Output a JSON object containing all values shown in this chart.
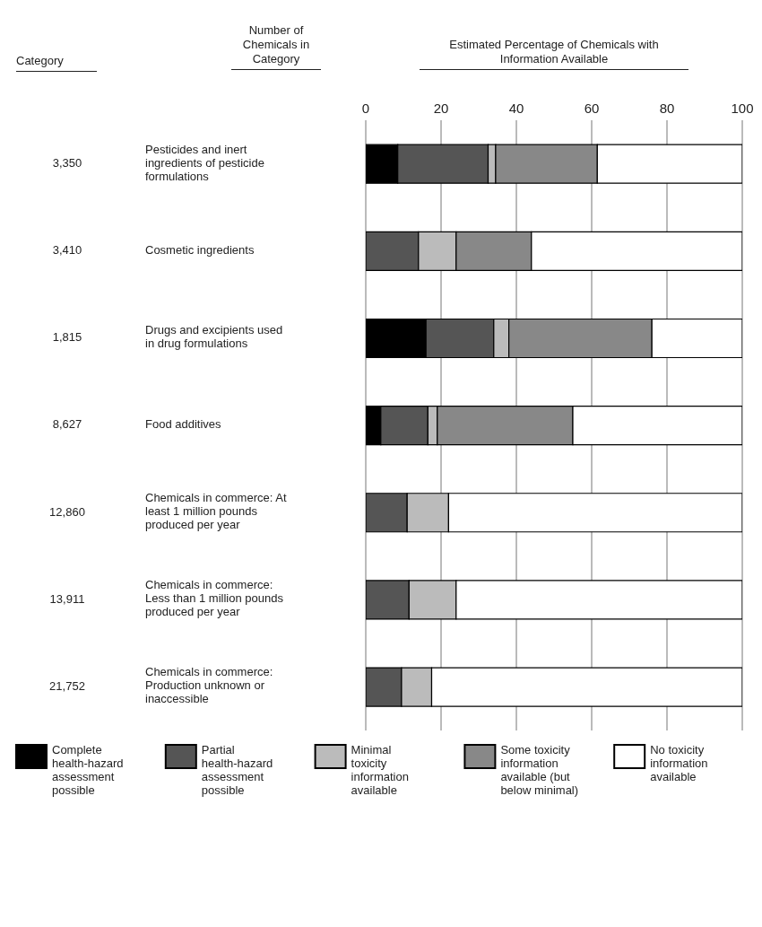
{
  "chart_data": {
    "type": "bar",
    "orientation": "horizontal",
    "stacked": true,
    "xlabel": "Estimated Percentage of Chemicals with Information Available",
    "annotations": [
      "Category",
      "Number of Chemicals in Category"
    ],
    "categories": [
      "Pesticides and inert ingredients of pesticide formulations",
      "Cosmetic ingredients",
      "Drugs and excipients used in drug formulations",
      "Food additives",
      "Chemicals in commerce: At least 1 million pounds produced per year",
      "Chemicals in commerce: Less than 1 million pounds produced per year",
      "Chemicals in commerce: Production unknown or inaccessible"
    ],
    "y2_categories": [
      "3,350",
      "3,410",
      "1,815",
      "8,627",
      "12,860",
      "13,911",
      "21,752"
    ],
    "series": [
      {
        "name": "Complete health-hazard assessment possible",
        "color": "#000000",
        "values": [
          8.5,
          0,
          16,
          4,
          0,
          0,
          0
        ]
      },
      {
        "name": "Partial health-hazard assessment possible",
        "color": "#555555",
        "values": [
          24,
          14,
          18,
          12.5,
          11,
          11.5,
          9.5
        ]
      },
      {
        "name": "Minimal toxicity information available",
        "color": "#bbbbbb",
        "values": [
          2,
          10,
          4,
          2.5,
          11,
          12.5,
          8
        ]
      },
      {
        "name": "Some toxicity information available (but below minimal)",
        "color": "#888888",
        "values": [
          27,
          20,
          38,
          36,
          0,
          0,
          0
        ]
      },
      {
        "name": "No toxicity information available",
        "color": "#ffffff",
        "values": [
          38.5,
          56,
          24,
          45,
          78,
          76,
          82.5
        ]
      }
    ],
    "xlim": [
      0,
      100
    ],
    "xticks": [
      0,
      20,
      40,
      60,
      80,
      100
    ],
    "grid": "x",
    "legend": "bottom"
  }
}
